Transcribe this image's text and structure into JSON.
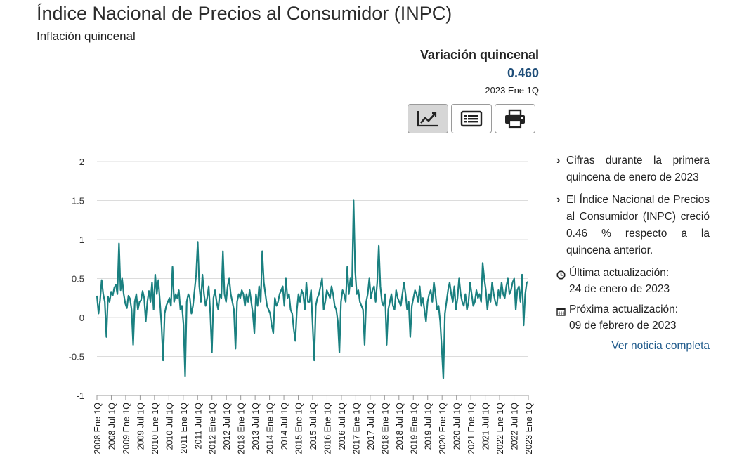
{
  "header": {
    "title": "Índice Nacional de Precios al Consumidor (INPC)",
    "subtitle": "Inflación quincenal"
  },
  "stat": {
    "label": "Variación quincenal",
    "value": "0.460",
    "period": "2023 Ene 1Q"
  },
  "toolbar": [
    {
      "name": "chart-view-button",
      "icon": "line-chart-icon",
      "active": true
    },
    {
      "name": "table-view-button",
      "icon": "table-list-icon",
      "active": false
    },
    {
      "name": "print-button",
      "icon": "printer-icon",
      "active": false
    }
  ],
  "info": {
    "bullets": [
      "Cifras durante la primera quincena de enero de 2023",
      "El Índice Nacional de Precios al Consumidor (INPC) creció 0.46 % respecto a la quincena anterior."
    ],
    "last_update_label": "Última actualización:",
    "last_update_date": "24 de enero de 2023",
    "next_update_label": "Próxima actualización:",
    "next_update_date": "09 de febrero de 2023",
    "link": "Ver noticia completa"
  },
  "chart_data": {
    "type": "line",
    "title": "",
    "xlabel": "",
    "ylabel": "",
    "ylim": [
      -1,
      2
    ],
    "yticks": [
      2,
      1.5,
      1,
      0.5,
      0,
      -0.5,
      -1
    ],
    "grid": true,
    "line_color": "#1a8080",
    "xtick_labels": [
      "2008 Ene 1Q",
      "2008 Jul 1Q",
      "2009 Ene 1Q",
      "2009 Jul 1Q",
      "2010 Ene 1Q",
      "2010 Jul 1Q",
      "2011 Ene 1Q",
      "2011 Jul 1Q",
      "2012 Ene 1Q",
      "2012 Jul 1Q",
      "2013 Ene 1Q",
      "2013 Jul 1Q",
      "2014 Ene 1Q",
      "2014 Jul 1Q",
      "2015 Ene 1Q",
      "2015 Jul 1Q",
      "2016 Ene 1Q",
      "2016 Jul 1Q",
      "2017 Ene 1Q",
      "2017 Jul 1Q",
      "2018 Ene 1Q",
      "2018 Jul 1Q",
      "2019 Ene 1Q",
      "2019 Jul 1Q",
      "2020 Ene 1Q",
      "2020 Jul 1Q",
      "2021 Ene 1Q",
      "2021 Jul 1Q",
      "2022 Ene 1Q",
      "2022 Jul 1Q",
      "2023 Ene 1Q"
    ],
    "series": [
      {
        "name": "",
        "values": [
          0.28,
          0.05,
          0.22,
          0.48,
          0.3,
          0.2,
          -0.25,
          0.27,
          0.2,
          0.33,
          0.28,
          0.38,
          0.42,
          0.3,
          0.95,
          0.35,
          0.5,
          0.3,
          0.18,
          0.12,
          0.28,
          0.24,
          0.1,
          -0.35,
          0.2,
          0.3,
          0.1,
          0.2,
          0.22,
          0.34,
          0.25,
          -0.05,
          0.2,
          0.34,
          0.2,
          0.45,
          0.1,
          0.55,
          0.3,
          0.48,
          0.2,
          -0.1,
          -0.55,
          0.05,
          0.15,
          0.2,
          0.25,
          0.15,
          0.65,
          0.2,
          0.3,
          0.25,
          0.35,
          0.1,
          0.15,
          -0.1,
          -0.75,
          0.2,
          0.3,
          0.25,
          0.05,
          0.15,
          0.35,
          0.55,
          0.97,
          0.4,
          0.2,
          0.55,
          0.3,
          0.15,
          0.25,
          0.4,
          0.05,
          -0.45,
          0.25,
          0.35,
          0.2,
          0.1,
          0.3,
          0.25,
          0.85,
          0.3,
          0.2,
          0.4,
          0.5,
          0.3,
          0.2,
          0.1,
          -0.4,
          0.2,
          0.3,
          0.25,
          0.35,
          0.3,
          0.15,
          0.3,
          0.2,
          0.35,
          0.2,
          0.05,
          -0.2,
          0.3,
          0.15,
          0.4,
          0.2,
          0.85,
          0.45,
          0.3,
          0.15,
          0.1,
          0.05,
          -0.1,
          -0.2,
          0.25,
          0.15,
          0.2,
          0.3,
          0.35,
          0.4,
          0.15,
          0.5,
          0.25,
          0.3,
          0.1,
          0.05,
          -0.15,
          -0.3,
          0.1,
          0.3,
          0.2,
          0.35,
          0.3,
          0.1,
          0.45,
          0.2,
          0.2,
          0.35,
          -0.1,
          -0.55,
          0.15,
          0.25,
          0.3,
          0.4,
          0.5,
          0.1,
          0.2,
          0.35,
          0.3,
          0.25,
          0.4,
          0.3,
          0.15,
          0.1,
          -0.05,
          -0.45,
          0.2,
          0.35,
          0.3,
          0.2,
          0.65,
          0.3,
          0.5,
          0.4,
          1.5,
          0.6,
          0.3,
          0.35,
          0.2,
          0.15,
          0.1,
          -0.35,
          0.2,
          0.3,
          0.5,
          0.25,
          0.35,
          0.4,
          0.2,
          0.45,
          0.92,
          0.4,
          0.2,
          0.15,
          0.3,
          -0.35,
          0.1,
          0.2,
          0.3,
          0.15,
          0.1,
          0.35,
          0.25,
          0.2,
          0.15,
          0.3,
          0.45,
          0.3,
          0.1,
          0.2,
          -0.25,
          0.15,
          0.25,
          0.35,
          0.3,
          0.2,
          0.4,
          0.15,
          0.25,
          0.1,
          -0.05,
          0.2,
          0.3,
          0.35,
          0.2,
          0.45,
          0.3,
          0.1,
          0.15,
          -0.05,
          -0.4,
          -0.78,
          0.05,
          0.2,
          0.35,
          0.45,
          0.3,
          0.2,
          0.4,
          0.1,
          0.25,
          0.5,
          0.3,
          0.2,
          0.15,
          0.3,
          0.1,
          0.2,
          0.45,
          0.3,
          0.15,
          0.2,
          0.35,
          0.25,
          0.3,
          0.2,
          0.7,
          0.5,
          0.35,
          0.1,
          0.3,
          0.2,
          0.45,
          0.3,
          0.2,
          0.15,
          0.35,
          0.25,
          0.45,
          0.3,
          0.25,
          0.4,
          0.5,
          0.3,
          0.35,
          0.45,
          0.5,
          0.1,
          0.35,
          0.4,
          0.2,
          0.55,
          -0.1,
          0.3,
          0.45,
          0.46
        ]
      }
    ]
  }
}
